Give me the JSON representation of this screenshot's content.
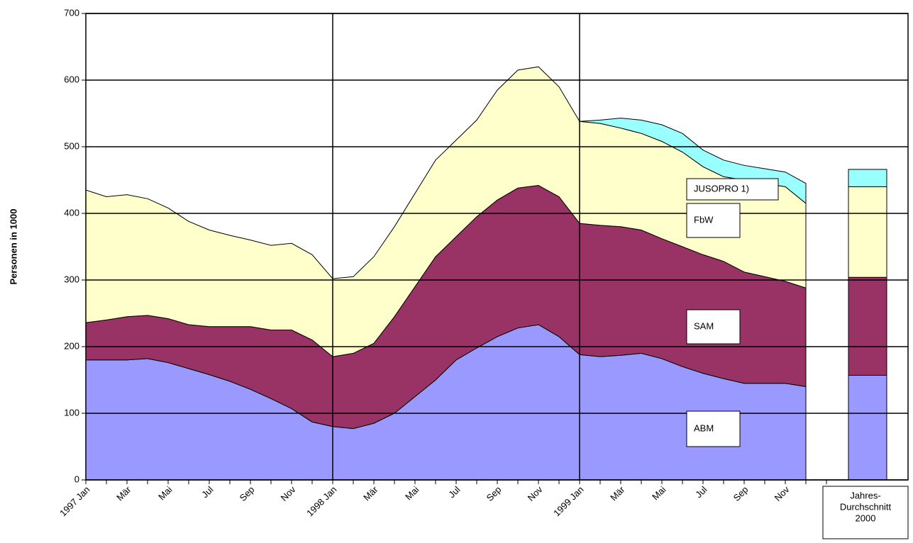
{
  "chart_data": {
    "type": "stacked-area",
    "ylabel": "Personen in 1000",
    "categories": [
      "1997 Jan",
      null,
      "Mär",
      null,
      "Mai",
      null,
      "Jul",
      null,
      "Sep",
      null,
      "Nov",
      null,
      "1998 Jan",
      null,
      "Mär",
      null,
      "Mai",
      null,
      "Jul",
      null,
      "Sep",
      null,
      "Nov",
      null,
      "1999 Jan",
      null,
      "Mär",
      null,
      "Mai",
      null,
      "Jul",
      null,
      "Sep",
      null,
      "Nov",
      null
    ],
    "average_label": [
      "Jahres-",
      "Durchschnitt",
      "2000"
    ],
    "series": [
      {
        "name": "ABM",
        "color": "#9999ff",
        "values": [
          180,
          180,
          180,
          182,
          176,
          167,
          158,
          148,
          136,
          122,
          107,
          87,
          80,
          77,
          85,
          100,
          125,
          150,
          180,
          198,
          215,
          228,
          233,
          215,
          188,
          185,
          187,
          190,
          182,
          170,
          160,
          152,
          145,
          145,
          145,
          140
        ],
        "average": 157
      },
      {
        "name": "SAM",
        "color": "#993366",
        "values": [
          56,
          60,
          65,
          65,
          66,
          66,
          72,
          82,
          94,
          103,
          118,
          123,
          105,
          113,
          120,
          145,
          165,
          185,
          185,
          197,
          205,
          210,
          209,
          210,
          197,
          197,
          193,
          185,
          180,
          180,
          178,
          176,
          167,
          160,
          153,
          148
        ],
        "average": 147
      },
      {
        "name": "FbW",
        "color": "#ffffcc",
        "values": [
          199,
          185,
          183,
          175,
          166,
          155,
          145,
          137,
          130,
          127,
          130,
          128,
          117,
          115,
          130,
          135,
          140,
          145,
          145,
          145,
          165,
          177,
          178,
          165,
          153,
          153,
          148,
          145,
          146,
          142,
          132,
          127,
          138,
          140,
          142,
          127
        ],
        "average": 136
      },
      {
        "name": "JUSOPRO 1)",
        "color": "#99ffff",
        "values": [
          null,
          null,
          null,
          null,
          null,
          null,
          null,
          null,
          null,
          null,
          null,
          null,
          null,
          null,
          null,
          null,
          null,
          null,
          null,
          null,
          null,
          null,
          null,
          null,
          0,
          5,
          15,
          20,
          25,
          28,
          25,
          25,
          22,
          22,
          22,
          30
        ],
        "average": 26
      }
    ],
    "ylim": [
      0,
      700
    ],
    "yticks": [
      0,
      100,
      200,
      300,
      400,
      500,
      600,
      700
    ],
    "grid": true
  }
}
